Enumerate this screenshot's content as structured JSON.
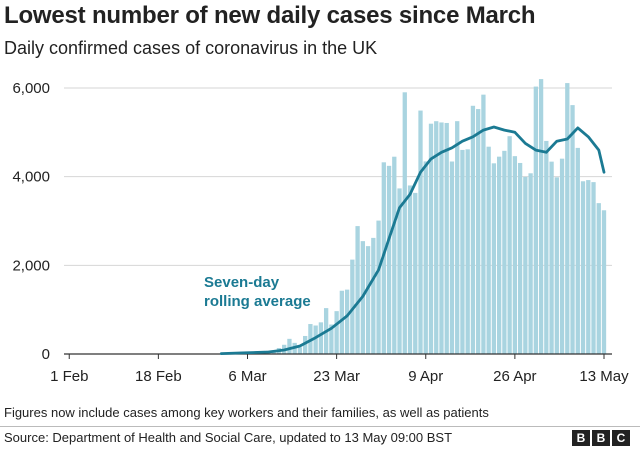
{
  "chart_data": {
    "type": "bar",
    "title": "Lowest number of new daily cases since March",
    "subtitle": "Daily confirmed cases of coronavirus in the UK",
    "x_tick_labels": [
      "1 Feb",
      "18 Feb",
      "6 Mar",
      "23 Mar",
      "9 Apr",
      "26 Apr",
      "13 May"
    ],
    "y_tick_labels": [
      "0",
      "2,000",
      "4,000",
      "6,000"
    ],
    "y_ticks": [
      0,
      2000,
      4000,
      6000
    ],
    "ylim": [
      0,
      6000
    ],
    "x_range": [
      "2020-01-31",
      "2020-05-13"
    ],
    "grid": true,
    "series": [
      {
        "name": "Daily confirmed cases",
        "style": "bars",
        "color": "#a9d4e0",
        "x": [
          "2020-03-01",
          "2020-03-02",
          "2020-03-03",
          "2020-03-04",
          "2020-03-05",
          "2020-03-06",
          "2020-03-07",
          "2020-03-08",
          "2020-03-09",
          "2020-03-10",
          "2020-03-11",
          "2020-03-12",
          "2020-03-13",
          "2020-03-14",
          "2020-03-15",
          "2020-03-16",
          "2020-03-17",
          "2020-03-18",
          "2020-03-19",
          "2020-03-20",
          "2020-03-21",
          "2020-03-22",
          "2020-03-23",
          "2020-03-24",
          "2020-03-25",
          "2020-03-26",
          "2020-03-27",
          "2020-03-28",
          "2020-03-29",
          "2020-03-30",
          "2020-03-31",
          "2020-04-01",
          "2020-04-02",
          "2020-04-03",
          "2020-04-04",
          "2020-04-05",
          "2020-04-06",
          "2020-04-07",
          "2020-04-08",
          "2020-04-09",
          "2020-04-10",
          "2020-04-11",
          "2020-04-12",
          "2020-04-13",
          "2020-04-14",
          "2020-04-15",
          "2020-04-16",
          "2020-04-17",
          "2020-04-18",
          "2020-04-19",
          "2020-04-20",
          "2020-04-21",
          "2020-04-22",
          "2020-04-23",
          "2020-04-24",
          "2020-04-25",
          "2020-04-26",
          "2020-04-27",
          "2020-04-28",
          "2020-04-29",
          "2020-04-30",
          "2020-05-01",
          "2020-05-02",
          "2020-05-03",
          "2020-05-04",
          "2020-05-05",
          "2020-05-06",
          "2020-05-07",
          "2020-05-08",
          "2020-05-09",
          "2020-05-10",
          "2020-05-11",
          "2020-05-12",
          "2020-05-13"
        ],
        "values": [
          12,
          4,
          15,
          39,
          30,
          49,
          45,
          63,
          52,
          75,
          83,
          135,
          208,
          342,
          251,
          152,
          407,
          676,
          643,
          714,
          1035,
          665,
          967,
          1427,
          1452,
          2129,
          2885,
          2546,
          2433,
          2619,
          3009,
          4324,
          4244,
          4450,
          3735,
          5903,
          3802,
          3634,
          5491,
          4344,
          5195,
          5251,
          5223,
          5211,
          4342,
          5252,
          4603,
          4617,
          5599,
          5525,
          5850,
          4676,
          4301,
          4451,
          4583,
          4913,
          4463,
          4309,
          3996,
          4076,
          6032,
          6201,
          4806,
          4339,
          3985,
          4406,
          6111,
          5614,
          4649,
          3896,
          3923,
          3877,
          3403,
          3242
        ]
      },
      {
        "name": "Seven-day rolling average",
        "style": "line",
        "color": "#1b7a93",
        "x": [
          "2020-03-01",
          "2020-03-05",
          "2020-03-10",
          "2020-03-13",
          "2020-03-16",
          "2020-03-19",
          "2020-03-22",
          "2020-03-25",
          "2020-03-28",
          "2020-03-31",
          "2020-04-02",
          "2020-04-04",
          "2020-04-06",
          "2020-04-08",
          "2020-04-10",
          "2020-04-12",
          "2020-04-14",
          "2020-04-16",
          "2020-04-18",
          "2020-04-20",
          "2020-04-22",
          "2020-04-24",
          "2020-04-26",
          "2020-04-28",
          "2020-04-30",
          "2020-05-02",
          "2020-05-04",
          "2020-05-06",
          "2020-05-08",
          "2020-05-10",
          "2020-05-12",
          "2020-05-13"
        ],
        "values": [
          10,
          25,
          45,
          90,
          180,
          370,
          580,
          860,
          1300,
          1900,
          2600,
          3300,
          3600,
          4100,
          4400,
          4550,
          4650,
          4800,
          4900,
          5050,
          5120,
          5050,
          5000,
          4750,
          4600,
          4550,
          4800,
          4850,
          5100,
          4900,
          4600,
          4100
        ]
      }
    ],
    "annotation": {
      "text_lines": [
        "Seven-day",
        "rolling average"
      ],
      "color": "#1b7a93"
    }
  },
  "footnote": "Figures now include cases among key workers and their families, as well as patients",
  "source": "Source: Department of Health and Social Care, updated to 13 May 09:00 BST",
  "logo": [
    "B",
    "B",
    "C"
  ]
}
